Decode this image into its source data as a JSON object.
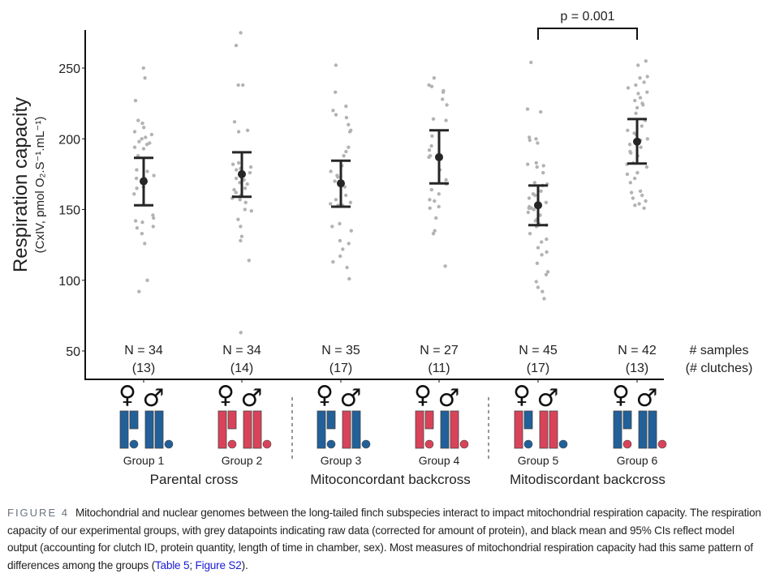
{
  "chart_data": {
    "type": "scatter",
    "subtype": "dot-plot with mean and 95% CI error bars",
    "title": "",
    "ylabel": "Respiration capacity",
    "ylabel_sub": "(CxIV, pmol O₂.S⁻¹.mL⁻¹)",
    "xlabel": "",
    "ylim": [
      30,
      278
    ],
    "yticks": [
      50,
      100,
      150,
      200,
      250
    ],
    "grid": false,
    "categories": [
      "Group 1",
      "Group 2",
      "Group 3",
      "Group 4",
      "Group 5",
      "Group 6"
    ],
    "groups": [
      {
        "name": "Group 1",
        "n_label": "N = 34",
        "clutch_label": "(13)",
        "mean": 170,
        "ci_low": 153,
        "ci_high": 186.5,
        "category": "Parental cross",
        "female_fill": [
          "#22609a",
          "#22609a"
        ],
        "female_dot": "#22609a",
        "male_fill": [
          "#22609a",
          "#22609a"
        ],
        "male_dot": "#22609a",
        "points": [
          250,
          243,
          227,
          213,
          211,
          208,
          205,
          203,
          201,
          200,
          198,
          197,
          196,
          194,
          193,
          188,
          177,
          172,
          172,
          166,
          165,
          161,
          146,
          144,
          142,
          141,
          138,
          137,
          133,
          126,
          100,
          92,
          178,
          174
        ]
      },
      {
        "name": "Group 2",
        "n_label": "N = 34",
        "clutch_label": "(14)",
        "mean": 175,
        "ci_low": 159,
        "ci_high": 190.5,
        "category": "Parental cross",
        "female_fill": [
          "#d9435a",
          "#d9435a"
        ],
        "female_dot": "#d9435a",
        "male_fill": [
          "#d9435a",
          "#d9435a"
        ],
        "male_dot": "#d9435a",
        "points": [
          275,
          266,
          238,
          238,
          212,
          206,
          205,
          183,
          182,
          180,
          178,
          176,
          173,
          172,
          171,
          169,
          168,
          165,
          164,
          162,
          160,
          159,
          158,
          157,
          155,
          150,
          149,
          143,
          138,
          131,
          128,
          114,
          63,
          179
        ]
      },
      {
        "name": "Group 3",
        "n_label": "N = 35",
        "clutch_label": "(17)",
        "mean": 168.5,
        "ci_low": 152,
        "ci_high": 184.5,
        "category": "Mitoconcordant backcross",
        "female_fill": [
          "#22609a",
          "#22609a"
        ],
        "female_dot": "#22609a",
        "male_fill": [
          "#d9435a",
          "#22609a"
        ],
        "male_dot": "#22609a",
        "points": [
          252,
          233,
          223,
          220,
          217,
          215,
          210,
          206,
          205,
          194,
          191,
          188,
          181,
          177,
          174,
          173,
          170,
          169,
          166,
          160,
          157,
          155,
          154,
          153,
          153,
          140,
          138,
          135,
          128,
          126,
          122,
          117,
          113,
          109,
          101
        ]
      },
      {
        "name": "Group 4",
        "n_label": "N = 27",
        "clutch_label": "(11)",
        "mean": 187,
        "ci_low": 168.5,
        "ci_high": 206,
        "category": "Mitoconcordant backcross",
        "female_fill": [
          "#d9435a",
          "#d9435a"
        ],
        "female_dot": "#d9435a",
        "male_fill": [
          "#22609a",
          "#d9435a"
        ],
        "male_dot": "#d9435a",
        "points": [
          243,
          238,
          237,
          234,
          233,
          228,
          224,
          214,
          213,
          202,
          192,
          188,
          187,
          178,
          171,
          168,
          164,
          161,
          157,
          156,
          152,
          151,
          144,
          133,
          135,
          110,
          195
        ]
      },
      {
        "name": "Group 5",
        "n_label": "N = 45",
        "clutch_label": "(17)",
        "mean": 153,
        "ci_low": 139,
        "ci_high": 167,
        "category": "Mitodiscordant backcross",
        "female_fill": [
          "#d9435a",
          "#22609a"
        ],
        "female_dot": "#22609a",
        "male_fill": [
          "#d9435a",
          "#d9435a"
        ],
        "male_dot": "#22609a",
        "points": [
          254,
          221,
          219,
          201,
          200,
          199,
          197,
          183,
          182,
          181,
          180,
          176,
          169,
          168,
          167,
          163,
          161,
          160,
          158,
          155,
          152,
          151,
          151,
          150,
          148,
          146,
          143,
          142,
          140,
          139,
          139,
          138,
          133,
          129,
          127,
          123,
          120,
          118,
          112,
          106,
          104,
          99,
          95,
          92,
          87
        ]
      },
      {
        "name": "Group 6",
        "n_label": "N = 42",
        "clutch_label": "(13)",
        "mean": 198,
        "ci_low": 182.5,
        "ci_high": 214,
        "category": "Mitodiscordant backcross",
        "female_fill": [
          "#22609a",
          "#22609a"
        ],
        "female_dot": "#d9435a",
        "male_fill": [
          "#22609a",
          "#22609a"
        ],
        "male_dot": "#d9435a",
        "points": [
          255,
          252,
          244,
          243,
          240,
          238,
          236,
          233,
          232,
          229,
          227,
          225,
          224,
          222,
          218,
          213,
          209,
          206,
          204,
          203,
          200,
          199,
          196,
          194,
          191,
          190,
          188,
          183,
          182,
          180,
          176,
          175,
          172,
          169,
          163,
          162,
          160,
          158,
          156,
          154,
          153,
          151
        ]
      }
    ],
    "comparison": {
      "from": "Group 5",
      "to": "Group 6",
      "label": "p = 0.001"
    },
    "right_labels": {
      "samples": "# samples",
      "clutches": "(# clutches)"
    },
    "categories_bottom": [
      {
        "label": "Parental cross",
        "groups": [
          "Group 1",
          "Group 2"
        ]
      },
      {
        "label": "Mitoconcordant backcross",
        "groups": [
          "Group 3",
          "Group 4"
        ]
      },
      {
        "label": "Mitodiscordant backcross",
        "groups": [
          "Group 5",
          "Group 6"
        ]
      }
    ],
    "colors": {
      "mito_blue": "#22609a",
      "mito_red": "#d9435a",
      "points": "#b3b3b3",
      "mean_ci": "#262626"
    },
    "symbols": {
      "female": "♀",
      "male": "♂"
    }
  },
  "caption": {
    "figure_label": "FIGURE 4",
    "text_before": "Mitochondrial and nuclear genomes between the long-tailed finch subspecies interact to impact mitochondrial respiration capacity. The respiration capacity of our experimental groups, with grey datapoints indicating raw data (corrected for amount of protein), and black mean and 95% CIs reflect model output (accounting for clutch ID, protein quantity, length of time in chamber, sex). Most measures of mitochondrial respiration capacity had this same pattern of differences among the groups (",
    "link_table": "Table 5",
    "separator": "; ",
    "link_figure": "Figure S2",
    "text_after": ")."
  }
}
